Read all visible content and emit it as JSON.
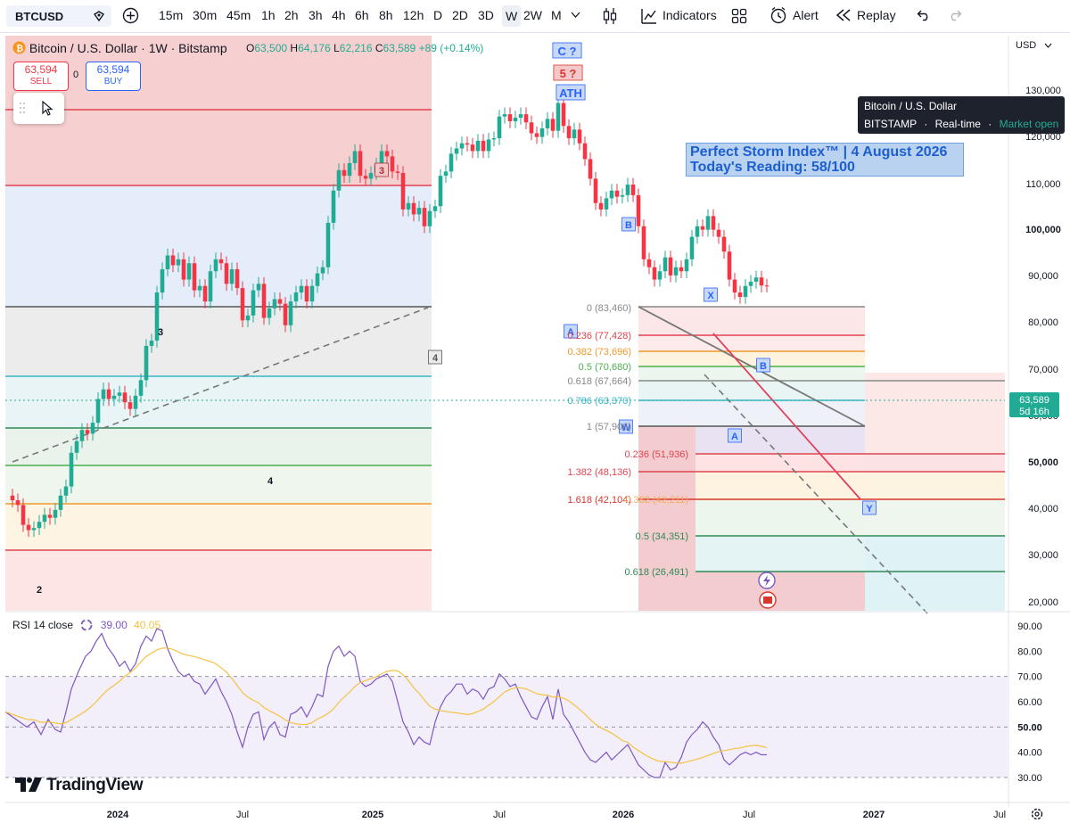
{
  "toolbar": {
    "symbol": "BTCUSD",
    "intervals": [
      "15m",
      "30m",
      "45m",
      "1h",
      "2h",
      "3h",
      "4h",
      "6h",
      "8h",
      "12h",
      "D",
      "2D",
      "3D",
      "W",
      "2W",
      "M"
    ],
    "active_interval": "W",
    "indicators_label": "Indicators",
    "alert_label": "Alert",
    "replay_label": "Replay"
  },
  "legend": {
    "title": "Bitcoin / U.S. Dollar · 1W · Bitstamp",
    "o_label": "O",
    "o": "63,500",
    "h_label": "H",
    "h": "64,176",
    "l_label": "L",
    "l": "62,216",
    "c_label": "C",
    "c": "63,589",
    "change": "+89 (+0.14%)"
  },
  "trade": {
    "sell_price": "63,594",
    "sell_label": "SELL",
    "spread": "0",
    "buy_price": "63,594",
    "buy_label": "BUY"
  },
  "tooltip": {
    "title": "Bitcoin / U.S. Dollar",
    "exchange": "BITSTAMP",
    "sep": "·",
    "realtime": "Real-time",
    "status": "Market open"
  },
  "storm": {
    "line1": "Perfect Storm Index™ | 4 August 2026",
    "line2": "Today's Reading: 58/100"
  },
  "currency": "USD",
  "price_axis": [
    "130,000",
    "120,000",
    "110,000",
    "100,000",
    "90,000",
    "80,000",
    "70,000",
    "60,000",
    "50,000",
    "40,000",
    "30,000",
    "20,000"
  ],
  "last_price": {
    "price": "63,589",
    "countdown": "5d 16h"
  },
  "time_axis": [
    "2024",
    "Jul",
    "2025",
    "Jul",
    "2026",
    "Jul",
    "2027",
    "Jul"
  ],
  "rsi": {
    "label": "RSI 14 close",
    "value": "39.00",
    "ma_value": "40.05",
    "axis": [
      "90.00",
      "80.00",
      "70.00",
      "60.00",
      "50.00",
      "40.00",
      "30.00"
    ]
  },
  "wave_labels": [
    "2",
    "3",
    "4",
    "3",
    "4",
    "5 ?",
    "C ?",
    "ATH",
    "B",
    "A",
    "X",
    "B",
    "W",
    "A",
    "Y"
  ],
  "fib_right": [
    "0 (83,460)",
    "0.236 (77,428)",
    "0.382 (73,696)",
    "0.5 (70,680)",
    "0.618 (67,664)",
    "0.786 (63,370)",
    "1 (57,906)",
    "0.236 (51,936)",
    "1.382 (48,136)",
    "1.618 (42,104)",
    "0.382 (42,211)",
    "0.5 (34,351)",
    "0.618 (26,491)"
  ],
  "brand": "TradingView",
  "colors": {
    "up": "#22ab94",
    "down": "#f23645",
    "accent": "#2962ff",
    "rsi": "#7e57c2",
    "rsi_ma": "#f5c242"
  }
}
